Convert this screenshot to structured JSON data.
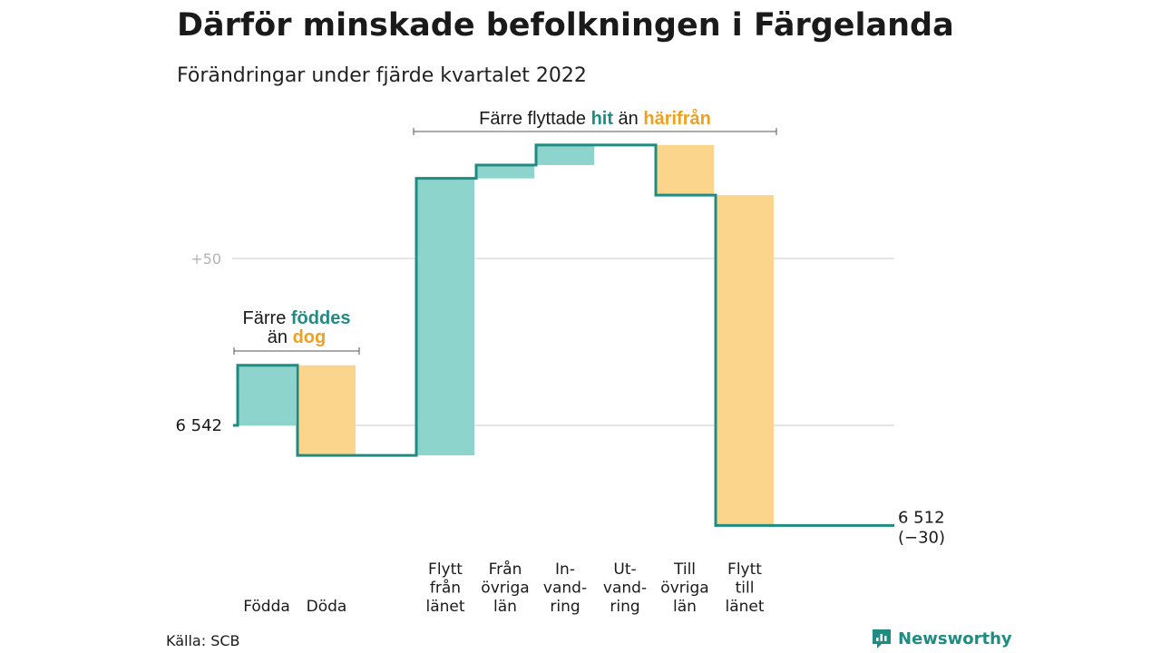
{
  "title": "Därför minskade befolkningen i Färgelanda",
  "subtitle": "Förändringar under fjärde kvartalet 2022",
  "source": "Källa: SCB",
  "logo_text": "Newsworthy",
  "colors": {
    "line": "#1f8c84",
    "increase": "#8dd5cc",
    "decrease": "#fbd58c",
    "accent_in": "#1f8c84",
    "accent_out": "#f0a020",
    "grid": "#dddddd",
    "tick": "#b5b5b5"
  },
  "annotations": {
    "births": {
      "prefix": "Färre ",
      "highlight": "föddes",
      "line2_prefix": "än ",
      "line2_highlight": "dog"
    },
    "moves": {
      "prefix": "Färre flyttade ",
      "highlight": "hit",
      "middle": " än ",
      "highlight2": "härifrån"
    }
  },
  "chart_data": {
    "type": "waterfall",
    "title": "Därför minskade befolkningen i Färgelanda",
    "subtitle": "Förändringar under fjärde kvartalet 2022",
    "start_value": 6542,
    "start_label": "6 542",
    "end_value": 6512,
    "end_label": "6 512",
    "change_label": "(−30)",
    "y_tick_labels": [
      {
        "label": "+50",
        "value": 6592
      }
    ],
    "grid_values": [
      6542,
      6592
    ],
    "steps": [
      {
        "label": [
          "Födda"
        ],
        "value": 18
      },
      {
        "label": [
          "Döda"
        ],
        "value": -27
      },
      {
        "label": [
          "Flytt",
          "från",
          "länet"
        ],
        "value": 83
      },
      {
        "label": [
          "Från",
          "övriga",
          "län"
        ],
        "value": 4
      },
      {
        "label": [
          "In-",
          "vand-",
          "ring"
        ],
        "value": 6
      },
      {
        "label": [
          "Ut-",
          "vand-",
          "ring"
        ],
        "value": 0
      },
      {
        "label": [
          "Till",
          "övriga",
          "län"
        ],
        "value": -15
      },
      {
        "label": [
          "Flytt",
          "till",
          "länet"
        ],
        "value": -99
      }
    ]
  }
}
